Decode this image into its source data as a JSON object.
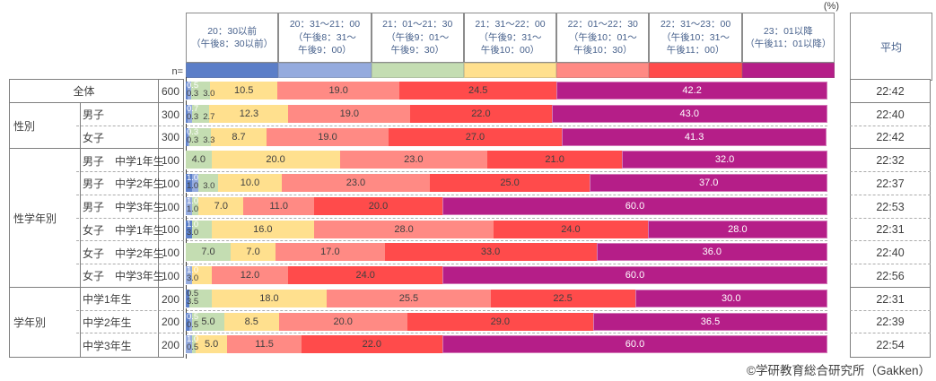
{
  "unit_label": "(%)",
  "n_label": "n=",
  "average_header": "平均",
  "copyright": "©学研教育総合研究所（Gakken）",
  "chart_data": {
    "type": "stacked-bar",
    "unit": "%",
    "xlim": [
      0,
      100
    ],
    "legend_position": "top",
    "categories": [
      {
        "name": "20:30以前",
        "label_lines": [
          "20：30以前",
          "（午後8：30以前）"
        ],
        "color": "#5b7ec8"
      },
      {
        "name": "20:31-21:00",
        "label_lines": [
          "20：31～21：00",
          "（午後8：31～",
          "午後9：00）"
        ],
        "color": "#95abde"
      },
      {
        "name": "21:01-21:30",
        "label_lines": [
          "21：01～21：30",
          "（午後9：01～",
          "午後9：30）"
        ],
        "color": "#c4ddb2"
      },
      {
        "name": "21:31-22:00",
        "label_lines": [
          "21：31～22：00",
          "（午後9：31～",
          "午後10：00）"
        ],
        "color": "#ffe08e"
      },
      {
        "name": "22:01-22:30",
        "label_lines": [
          "22：01～22：30",
          "（午後10：01～",
          "午後10：30）"
        ],
        "color": "#ff8a84"
      },
      {
        "name": "22:31-23:00",
        "label_lines": [
          "22：31～23：00",
          "（午後10：31～",
          "午後11：00）"
        ],
        "color": "#ff4b4b"
      },
      {
        "name": "23:01以降",
        "label_lines": [
          "23：01以降",
          "（午後11：01以降）"
        ],
        "color": "#b51e88"
      }
    ],
    "groups": [
      {
        "label": "",
        "rows": [
          {
            "label": "全体",
            "n": "600",
            "values": [
              0.3,
              0.5,
              3.0,
              10.5,
              19.0,
              24.5,
              42.2
            ],
            "average": "22:42"
          }
        ]
      },
      {
        "label": "性別",
        "rows": [
          {
            "label": "男子",
            "n": "300",
            "values": [
              0.3,
              0.7,
              2.7,
              12.3,
              19.0,
              22.0,
              43.0
            ],
            "average": "22:40"
          },
          {
            "label": "女子",
            "n": "300",
            "values": [
              0.3,
              0.3,
              3.3,
              8.7,
              19.0,
              27.0,
              41.3
            ],
            "average": "22:42"
          }
        ]
      },
      {
        "label": "性学年別",
        "rows": [
          {
            "label": "男子　中学1年生",
            "n": "100",
            "values": [
              0,
              0,
              4.0,
              20.0,
              23.0,
              21.0,
              32.0
            ],
            "average": "22:32"
          },
          {
            "label": "男子　中学2年生",
            "n": "100",
            "values": [
              1.0,
              1.0,
              3.0,
              10.0,
              23.0,
              25.0,
              37.0
            ],
            "average": "22:37"
          },
          {
            "label": "男子　中学3年生",
            "n": "100",
            "values": [
              0,
              1.0,
              1.0,
              7.0,
              11.0,
              20.0,
              60.0
            ],
            "average": "22:53"
          },
          {
            "label": "女子　中学1年生",
            "n": "100",
            "values": [
              1.0,
              0,
              3.0,
              16.0,
              28.0,
              24.0,
              28.0
            ],
            "average": "22:31"
          },
          {
            "label": "女子　中学2年生",
            "n": "100",
            "values": [
              0,
              0,
              7.0,
              7.0,
              17.0,
              33.0,
              36.0
            ],
            "average": "22:40"
          },
          {
            "label": "女子　中学3年生",
            "n": "100",
            "values": [
              0,
              1.0,
              0,
              3.0,
              12.0,
              24.0,
              60.0
            ],
            "average": "22:56"
          }
        ]
      },
      {
        "label": "学年別",
        "rows": [
          {
            "label": "中学1年生",
            "n": "200",
            "values": [
              0.5,
              0,
              3.5,
              18.0,
              25.5,
              22.5,
              30.0
            ],
            "average": "22:31",
            "top_label_dark": true
          },
          {
            "label": "中学2年生",
            "n": "200",
            "values": [
              0.5,
              0.5,
              5.0,
              8.5,
              20.0,
              29.0,
              36.5
            ],
            "average": "22:39"
          },
          {
            "label": "中学3年生",
            "n": "200",
            "values": [
              0,
              1.0,
              0.5,
              5.0,
              11.5,
              22.0,
              60.0
            ],
            "average": "22:54"
          }
        ]
      }
    ],
    "colors": {
      "header_text": "#47618c",
      "body_text": "#404040",
      "label_on_magenta": "#ffffff",
      "solid_border": "#7f7f7f",
      "dashed_border": "#ababab"
    }
  }
}
